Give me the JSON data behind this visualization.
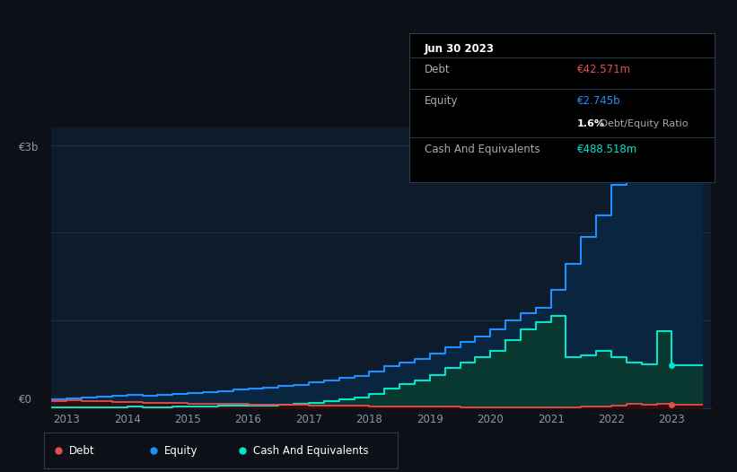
{
  "background_color": "#0d1117",
  "plot_bg_color": "#0d1b2a",
  "grid_color": "#1e3050",
  "equity_color": "#1e90ff",
  "equity_fill": "#0a2540",
  "cash_color": "#00e5cc",
  "cash_fill": "#083830",
  "debt_color": "#e05050",
  "debt_fill": "#3a0a0a",
  "y_label_top": "€3b",
  "y_label_zero": "€0",
  "x_ticks": [
    2013,
    2014,
    2015,
    2016,
    2017,
    2018,
    2019,
    2020,
    2021,
    2022,
    2023
  ],
  "tooltip_title": "Jun 30 2023",
  "tooltip_debt_label": "Debt",
  "tooltip_debt_value": "€42.571m",
  "tooltip_debt_color": "#e05050",
  "tooltip_equity_label": "Equity",
  "tooltip_equity_value": "€2.745b",
  "tooltip_equity_color": "#1e90ff",
  "tooltip_ratio": "1.6%",
  "tooltip_ratio_suffix": " Debt/Equity Ratio",
  "tooltip_cash_label": "Cash And Equivalents",
  "tooltip_cash_value": "€488.518m",
  "tooltip_cash_color": "#00e5cc",
  "legend_items": [
    {
      "label": "Debt",
      "color": "#e05050"
    },
    {
      "label": "Equity",
      "color": "#1e90ff"
    },
    {
      "label": "Cash And Equivalents",
      "color": "#00e5cc"
    }
  ],
  "years": [
    2012.75,
    2013.0,
    2013.25,
    2013.5,
    2013.75,
    2014.0,
    2014.25,
    2014.5,
    2014.75,
    2015.0,
    2015.25,
    2015.5,
    2015.75,
    2016.0,
    2016.25,
    2016.5,
    2016.75,
    2017.0,
    2017.25,
    2017.5,
    2017.75,
    2018.0,
    2018.25,
    2018.5,
    2018.75,
    2019.0,
    2019.25,
    2019.5,
    2019.75,
    2020.0,
    2020.25,
    2020.5,
    2020.75,
    2021.0,
    2021.25,
    2021.5,
    2021.75,
    2022.0,
    2022.25,
    2022.5,
    2022.75,
    2023.0,
    2023.5
  ],
  "equity": [
    0.1,
    0.11,
    0.12,
    0.13,
    0.14,
    0.155,
    0.14,
    0.15,
    0.16,
    0.175,
    0.18,
    0.195,
    0.21,
    0.225,
    0.24,
    0.255,
    0.27,
    0.3,
    0.32,
    0.35,
    0.37,
    0.42,
    0.48,
    0.52,
    0.56,
    0.62,
    0.7,
    0.76,
    0.82,
    0.9,
    1.0,
    1.08,
    1.15,
    1.35,
    1.65,
    1.95,
    2.2,
    2.55,
    2.9,
    2.72,
    2.78,
    2.745,
    2.745
  ],
  "cash": [
    0.01,
    0.01,
    0.01,
    0.01,
    0.01,
    0.02,
    0.015,
    0.015,
    0.02,
    0.02,
    0.025,
    0.03,
    0.03,
    0.03,
    0.035,
    0.04,
    0.05,
    0.06,
    0.08,
    0.1,
    0.12,
    0.16,
    0.22,
    0.28,
    0.32,
    0.38,
    0.46,
    0.52,
    0.58,
    0.65,
    0.78,
    0.9,
    0.98,
    1.05,
    0.58,
    0.6,
    0.65,
    0.58,
    0.52,
    0.5,
    0.88,
    0.488,
    0.488
  ],
  "debt": [
    0.08,
    0.09,
    0.085,
    0.08,
    0.075,
    0.075,
    0.065,
    0.06,
    0.06,
    0.055,
    0.055,
    0.05,
    0.05,
    0.045,
    0.04,
    0.04,
    0.038,
    0.035,
    0.032,
    0.03,
    0.028,
    0.025,
    0.022,
    0.02,
    0.018,
    0.018,
    0.016,
    0.015,
    0.014,
    0.012,
    0.012,
    0.01,
    0.01,
    0.01,
    0.012,
    0.018,
    0.025,
    0.035,
    0.048,
    0.042,
    0.048,
    0.042,
    0.042
  ],
  "ylim": [
    0,
    3.2
  ],
  "xlim": [
    2012.75,
    2023.65
  ]
}
